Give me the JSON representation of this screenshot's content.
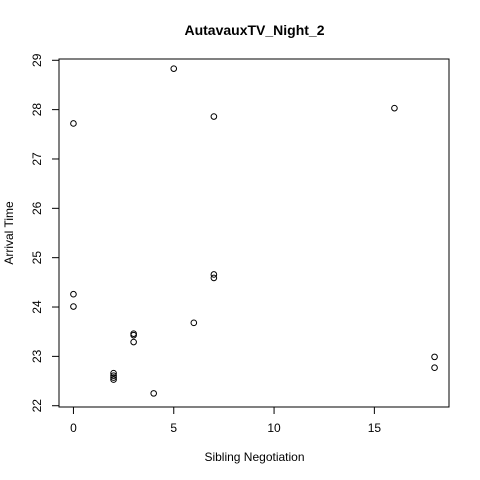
{
  "chart_data": {
    "type": "scatter",
    "title": "AutavauxTV_Night_2",
    "xlabel": "Sibling Negotiation",
    "ylabel": "Arrival Time",
    "xlim": [
      -0.72,
      18.72
    ],
    "ylim": [
      21.974,
      29.026
    ],
    "xticks": [
      0,
      5,
      10,
      15
    ],
    "yticks": [
      22,
      23,
      24,
      25,
      26,
      27,
      28,
      29
    ],
    "grid": false,
    "legend": "none",
    "marker": "open-circle",
    "point_color": "#000000",
    "points": [
      {
        "x": 0,
        "y": 27.72
      },
      {
        "x": 0,
        "y": 24.26
      },
      {
        "x": 0,
        "y": 24.01
      },
      {
        "x": 2,
        "y": 22.66
      },
      {
        "x": 2,
        "y": 22.61
      },
      {
        "x": 2,
        "y": 22.57
      },
      {
        "x": 2,
        "y": 22.53
      },
      {
        "x": 3,
        "y": 23.46
      },
      {
        "x": 3,
        "y": 23.43
      },
      {
        "x": 3,
        "y": 23.29
      },
      {
        "x": 4,
        "y": 22.25
      },
      {
        "x": 5,
        "y": 28.83
      },
      {
        "x": 6,
        "y": 23.68
      },
      {
        "x": 7,
        "y": 27.86
      },
      {
        "x": 7,
        "y": 24.66
      },
      {
        "x": 7,
        "y": 24.59
      },
      {
        "x": 16,
        "y": 28.03
      },
      {
        "x": 18,
        "y": 22.99
      },
      {
        "x": 18,
        "y": 22.77
      }
    ]
  }
}
